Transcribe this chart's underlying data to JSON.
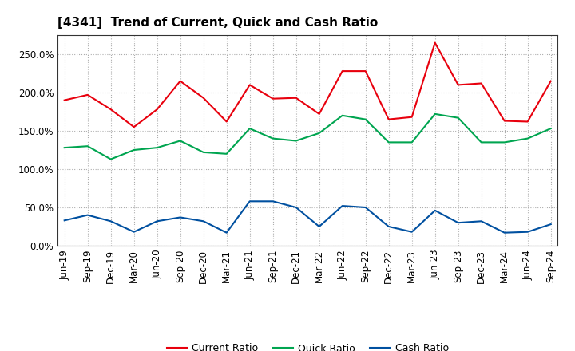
{
  "title": "[4341]  Trend of Current, Quick and Cash Ratio",
  "x_labels": [
    "Jun-19",
    "Sep-19",
    "Dec-19",
    "Mar-20",
    "Jun-20",
    "Sep-20",
    "Dec-20",
    "Mar-21",
    "Jun-21",
    "Sep-21",
    "Dec-21",
    "Mar-22",
    "Jun-22",
    "Sep-22",
    "Dec-22",
    "Mar-23",
    "Jun-23",
    "Sep-23",
    "Dec-23",
    "Mar-24",
    "Jun-24",
    "Sep-24"
  ],
  "current_ratio": [
    190,
    197,
    178,
    155,
    178,
    215,
    193,
    162,
    210,
    192,
    193,
    172,
    228,
    228,
    165,
    168,
    265,
    210,
    212,
    163,
    162,
    215
  ],
  "quick_ratio": [
    128,
    130,
    113,
    125,
    128,
    137,
    122,
    120,
    153,
    140,
    137,
    147,
    170,
    165,
    135,
    135,
    172,
    167,
    135,
    135,
    140,
    153
  ],
  "cash_ratio": [
    33,
    40,
    32,
    18,
    32,
    37,
    32,
    17,
    58,
    58,
    50,
    25,
    52,
    50,
    25,
    18,
    46,
    30,
    32,
    17,
    18,
    28
  ],
  "current_color": "#e8000d",
  "quick_color": "#00a550",
  "cash_color": "#0050a0",
  "background_color": "#ffffff",
  "grid_color": "#999999",
  "ylim": [
    0,
    275
  ],
  "yticks": [
    0,
    50,
    100,
    150,
    200,
    250
  ],
  "line_width": 1.5,
  "title_fontsize": 11,
  "tick_fontsize": 8.5,
  "legend_fontsize": 9
}
